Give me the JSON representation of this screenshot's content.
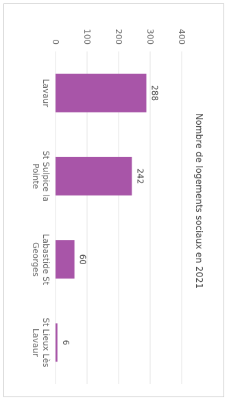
{
  "chart_data": {
    "type": "bar",
    "orientation": "rotated-90-clockwise",
    "title": "Nombre de logements sociaux en 2021",
    "categories": [
      [
        "Lavaur"
      ],
      [
        "St Sulpice la",
        "Pointe"
      ],
      [
        "Labastide St",
        "Georges"
      ],
      [
        "St Lieux Lès",
        "Lavaur"
      ]
    ],
    "values": [
      288,
      242,
      60,
      6
    ],
    "value_labels": [
      "288",
      "242",
      "60",
      "6"
    ],
    "yticks": [
      "0",
      "100",
      "200",
      "300",
      "400"
    ],
    "ylim": [
      0,
      400
    ],
    "grid": true,
    "bar_color": "#a855a8",
    "grid_color": "#e3e3e3"
  }
}
